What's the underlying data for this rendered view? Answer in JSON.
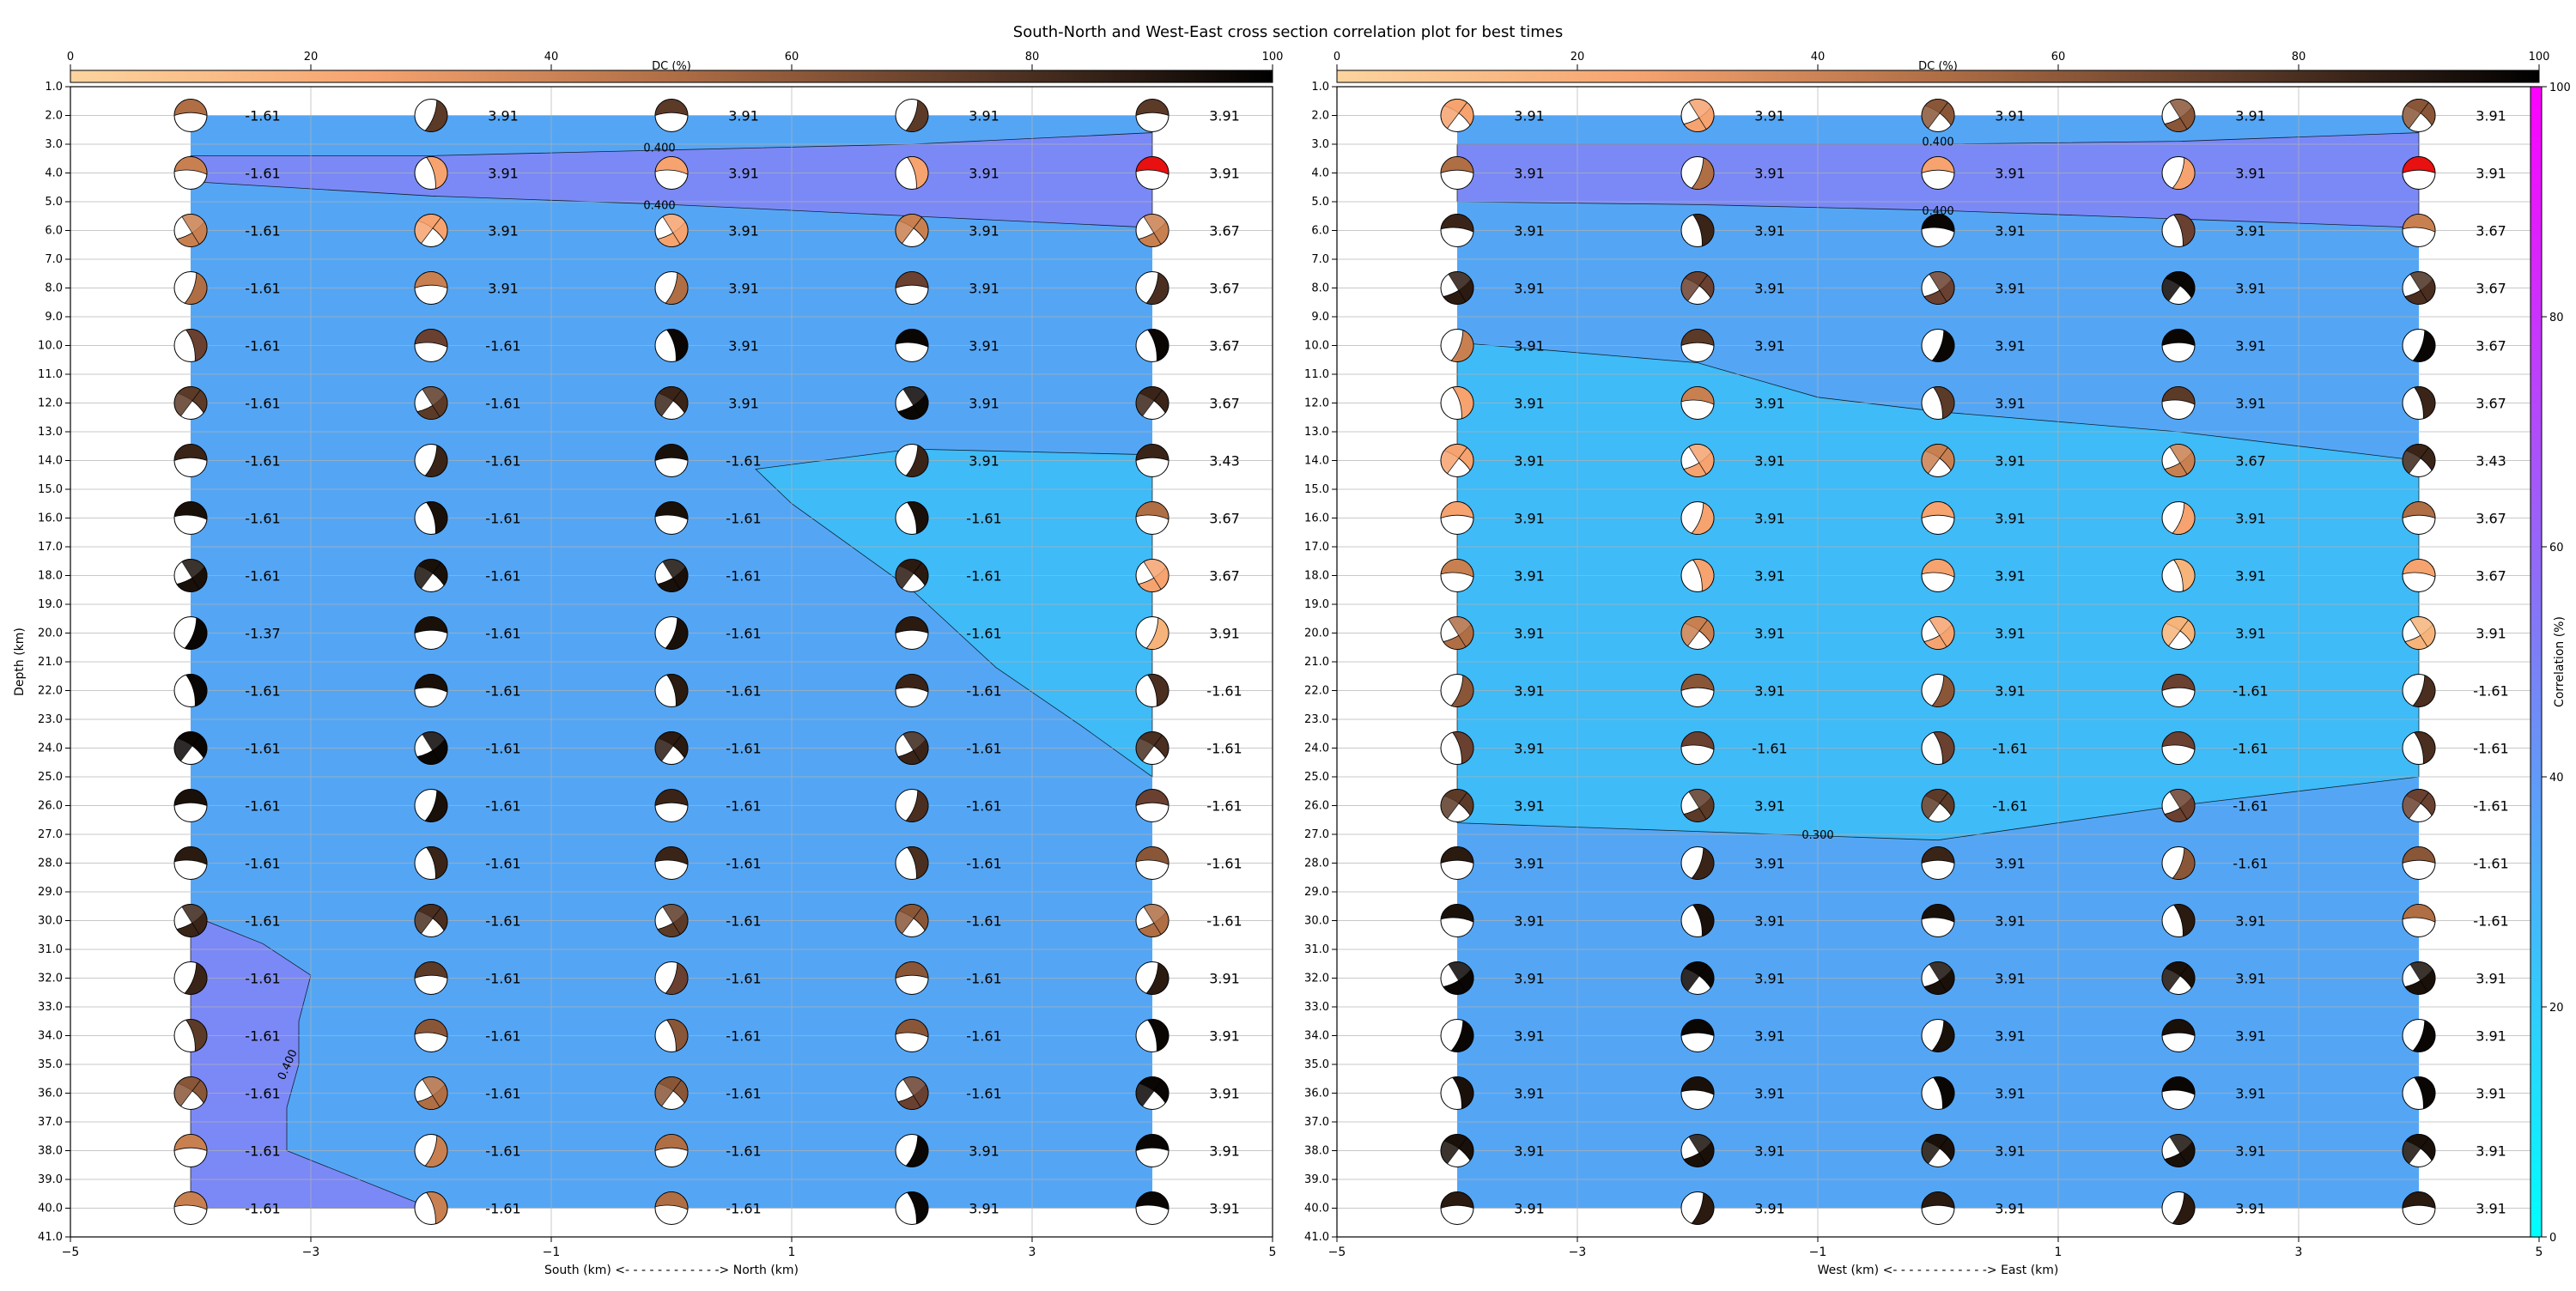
{
  "title": "South-North and West-East cross section correlation plot for best times",
  "dc_colorbar": {
    "label": "DC (%)",
    "ticks": [
      "0",
      "20",
      "40",
      "60",
      "80",
      "100"
    ]
  },
  "corr_colorbar": {
    "label": "Correlation (%)",
    "ticks": [
      "0",
      "20",
      "40",
      "60",
      "80",
      "100"
    ]
  },
  "chart_data": [
    {
      "type": "scatter",
      "name": "south-north",
      "xlabel": "South (km) <- - - - - - - - - - - -> North (km)",
      "ylabel": "Depth (km)",
      "xlim": [
        -5,
        5
      ],
      "ylim": [
        1,
        41
      ],
      "xticks": [
        -5,
        -3,
        -1,
        1,
        3,
        5
      ],
      "yticks": [
        1,
        2,
        3,
        4,
        5,
        6,
        7,
        8,
        9,
        10,
        11,
        12,
        13,
        14,
        15,
        16,
        17,
        18,
        19,
        20,
        21,
        22,
        23,
        24,
        25,
        26,
        27,
        28,
        29,
        30,
        31,
        32,
        33,
        34,
        35,
        36,
        37,
        38,
        39,
        40,
        41
      ],
      "grid": true,
      "x": [
        -4,
        -2,
        0,
        2,
        4
      ],
      "depths": [
        2,
        4,
        6,
        8,
        10,
        12,
        14,
        16,
        18,
        20,
        22,
        24,
        26,
        28,
        30,
        32,
        34,
        36,
        38,
        40
      ],
      "values": [
        [
          "-1.61",
          "3.91",
          "3.91",
          "3.91",
          "3.91"
        ],
        [
          "-1.61",
          "3.91",
          "3.91",
          "3.91",
          "3.91"
        ],
        [
          "-1.61",
          "3.91",
          "3.91",
          "3.91",
          "3.67"
        ],
        [
          "-1.61",
          "3.91",
          "3.91",
          "3.91",
          "3.67"
        ],
        [
          "-1.61",
          "-1.61",
          "3.91",
          "3.91",
          "3.67"
        ],
        [
          "-1.61",
          "-1.61",
          "3.91",
          "3.91",
          "3.67"
        ],
        [
          "-1.61",
          "-1.61",
          "-1.61",
          "3.91",
          "3.43"
        ],
        [
          "-1.61",
          "-1.61",
          "-1.61",
          "-1.61",
          "3.67"
        ],
        [
          "-1.61",
          "-1.61",
          "-1.61",
          "-1.61",
          "3.67"
        ],
        [
          "-1.37",
          "-1.61",
          "-1.61",
          "-1.61",
          "3.91"
        ],
        [
          "-1.61",
          "-1.61",
          "-1.61",
          "-1.61",
          "-1.61"
        ],
        [
          "-1.61",
          "-1.61",
          "-1.61",
          "-1.61",
          "-1.61"
        ],
        [
          "-1.61",
          "-1.61",
          "-1.61",
          "-1.61",
          "-1.61"
        ],
        [
          "-1.61",
          "-1.61",
          "-1.61",
          "-1.61",
          "-1.61"
        ],
        [
          "-1.61",
          "-1.61",
          "-1.61",
          "-1.61",
          "-1.61"
        ],
        [
          "-1.61",
          "-1.61",
          "-1.61",
          "-1.61",
          "3.91"
        ],
        [
          "-1.61",
          "-1.61",
          "-1.61",
          "-1.61",
          "3.91"
        ],
        [
          "-1.61",
          "-1.61",
          "-1.61",
          "-1.61",
          "3.91"
        ],
        [
          "-1.61",
          "-1.61",
          "-1.61",
          "3.91",
          "3.91"
        ],
        [
          "-1.61",
          "-1.61",
          "-1.61",
          "3.91",
          "3.91"
        ]
      ],
      "beach_color": [
        [
          "#b06e45",
          "#5c3a28",
          "#5c3a28",
          "#5c3a28",
          "#5c3a28"
        ],
        [
          "#c98050",
          "#f6a36f",
          "#f6a36f",
          "#f6a36f",
          "#e81010"
        ],
        [
          "#c98050",
          "#f6a36f",
          "#f6a36f",
          "#c98050",
          "#c98050"
        ],
        [
          "#b06e45",
          "#c98050",
          "#b06e45",
          "#6a4030",
          "#4a2e20"
        ],
        [
          "#6a4030",
          "#6a4030",
          "#0a0604",
          "#0a0604",
          "#0a0604"
        ],
        [
          "#5c3a28",
          "#5c3a28",
          "#3a2418",
          "#0a0604",
          "#3a2418"
        ],
        [
          "#3a2418",
          "#3a2418",
          "#1a100a",
          "#3a2418",
          "#3a2418"
        ],
        [
          "#1a100a",
          "#1a100a",
          "#1a100a",
          "#1a100a",
          "#b06e45"
        ],
        [
          "#1a100a",
          "#1a100a",
          "#1a100a",
          "#2a1a10",
          "#f6a36f"
        ],
        [
          "#0a0604",
          "#1a100a",
          "#1a100a",
          "#2a1a10",
          "#f6b47a"
        ],
        [
          "#0a0604",
          "#1a100a",
          "#2a1a10",
          "#3a2418",
          "#4a2e20"
        ],
        [
          "#0a0604",
          "#0a0604",
          "#2a1a10",
          "#3a2418",
          "#4a2e20"
        ],
        [
          "#1a100a",
          "#1a100a",
          "#3a2418",
          "#4a2e20",
          "#6a4030"
        ],
        [
          "#2a1a10",
          "#3a2418",
          "#3a2418",
          "#4a2e20",
          "#8a5638"
        ],
        [
          "#3a2418",
          "#4a2e20",
          "#5c3a28",
          "#8a5638",
          "#b06e45"
        ],
        [
          "#3a2418",
          "#5c3a28",
          "#6a4030",
          "#8a5638",
          "#2a1a10"
        ],
        [
          "#5c3a28",
          "#8a5638",
          "#8a5638",
          "#8a5638",
          "#0a0604"
        ],
        [
          "#8a5638",
          "#b06e45",
          "#8a5638",
          "#6a4030",
          "#0a0604"
        ],
        [
          "#c98050",
          "#c98050",
          "#b06e45",
          "#0a0604",
          "#0a0604"
        ],
        [
          "#c98050",
          "#c98050",
          "#b06e45",
          "#0a0604",
          "#0a0604"
        ]
      ],
      "regions": [
        {
          "correlation": 0.3,
          "color": "#54a6f5",
          "x_range": [
            -4,
            4
          ],
          "depth_range": [
            2,
            40
          ]
        },
        {
          "correlation": 0.4,
          "color": "#7b89f6",
          "polygon": [
            [
              -4,
              3.4
            ],
            [
              -2,
              3.4
            ],
            [
              0,
              3.2
            ],
            [
              2,
              3.0
            ],
            [
              4,
              2.6
            ],
            [
              4,
              5.9
            ],
            [
              2,
              5.5
            ],
            [
              0,
              5.1
            ],
            [
              -2,
              4.8
            ],
            [
              -4,
              4.3
            ]
          ]
        },
        {
          "correlation": 0.2,
          "color": "#3fbbf7",
          "polygon": [
            [
              0.7,
              14.3
            ],
            [
              2,
              13.6
            ],
            [
              4,
              13.8
            ],
            [
              4,
              25.0
            ],
            [
              3.4,
              23.2
            ],
            [
              2.7,
              21.2
            ],
            [
              2.0,
              18.5
            ],
            [
              1.0,
              15.5
            ]
          ]
        },
        {
          "correlation": 0.4,
          "color": "#7b89f6",
          "polygon": [
            [
              -4,
              29.8
            ],
            [
              -3.4,
              30.8
            ],
            [
              -3.0,
              31.9
            ],
            [
              -3.1,
              33.5
            ],
            [
              -3.1,
              35.0
            ],
            [
              -3.2,
              36.5
            ],
            [
              -3.2,
              38.0
            ],
            [
              -2,
              40
            ],
            [
              -4,
              40
            ]
          ]
        }
      ],
      "contour_labels": [
        {
          "text": "0.400",
          "x": -0.1,
          "depth": 3.1
        },
        {
          "text": "0.400",
          "x": -0.1,
          "depth": 5.1
        },
        {
          "text": "0.400",
          "x": -3.2,
          "depth": 35.0,
          "rotate": -66
        }
      ]
    },
    {
      "type": "scatter",
      "name": "west-east",
      "xlabel": "West (km) <- - - - - - - - - - - -> East (km)",
      "ylabel": "",
      "xlim": [
        -5,
        5
      ],
      "ylim": [
        1,
        41
      ],
      "xticks": [
        -5,
        -3,
        -1,
        1,
        3,
        5
      ],
      "yticks": [
        1,
        2,
        3,
        4,
        5,
        6,
        7,
        8,
        9,
        10,
        11,
        12,
        13,
        14,
        15,
        16,
        17,
        18,
        19,
        20,
        21,
        22,
        23,
        24,
        25,
        26,
        27,
        28,
        29,
        30,
        31,
        32,
        33,
        34,
        35,
        36,
        37,
        38,
        39,
        40,
        41
      ],
      "grid": true,
      "x": [
        -4,
        -2,
        0,
        2,
        4
      ],
      "depths": [
        2,
        4,
        6,
        8,
        10,
        12,
        14,
        16,
        18,
        20,
        22,
        24,
        26,
        28,
        30,
        32,
        34,
        36,
        38,
        40
      ],
      "values": [
        [
          "3.91",
          "3.91",
          "3.91",
          "3.91",
          "3.91"
        ],
        [
          "3.91",
          "3.91",
          "3.91",
          "3.91",
          "3.91"
        ],
        [
          "3.91",
          "3.91",
          "3.91",
          "3.91",
          "3.67"
        ],
        [
          "3.91",
          "3.91",
          "3.91",
          "3.91",
          "3.67"
        ],
        [
          "3.91",
          "3.91",
          "3.91",
          "3.91",
          "3.67"
        ],
        [
          "3.91",
          "3.91",
          "3.91",
          "3.91",
          "3.67"
        ],
        [
          "3.91",
          "3.91",
          "3.91",
          "3.67",
          "3.43"
        ],
        [
          "3.91",
          "3.91",
          "3.91",
          "3.91",
          "3.67"
        ],
        [
          "3.91",
          "3.91",
          "3.91",
          "3.91",
          "3.67"
        ],
        [
          "3.91",
          "3.91",
          "3.91",
          "3.91",
          "3.91"
        ],
        [
          "3.91",
          "3.91",
          "3.91",
          "-1.61",
          "-1.61"
        ],
        [
          "3.91",
          "-1.61",
          "-1.61",
          "-1.61",
          "-1.61"
        ],
        [
          "3.91",
          "3.91",
          "-1.61",
          "-1.61",
          "-1.61"
        ],
        [
          "3.91",
          "3.91",
          "3.91",
          "-1.61",
          "-1.61"
        ],
        [
          "3.91",
          "3.91",
          "3.91",
          "3.91",
          "-1.61"
        ],
        [
          "3.91",
          "3.91",
          "3.91",
          "3.91",
          "3.91"
        ],
        [
          "3.91",
          "3.91",
          "3.91",
          "3.91",
          "3.91"
        ],
        [
          "3.91",
          "3.91",
          "3.91",
          "3.91",
          "3.91"
        ],
        [
          "3.91",
          "3.91",
          "3.91",
          "3.91",
          "3.91"
        ],
        [
          "3.91",
          "3.91",
          "3.91",
          "3.91",
          "3.91"
        ]
      ],
      "beach_color": [
        [
          "#f6a36f",
          "#f6a36f",
          "#8a5638",
          "#8a5638",
          "#8a5638"
        ],
        [
          "#b06e45",
          "#b06e45",
          "#f6a36f",
          "#f6a36f",
          "#e81010"
        ],
        [
          "#3a2418",
          "#3a2418",
          "#0a0604",
          "#6a4030",
          "#c98050"
        ],
        [
          "#2a1a10",
          "#6a4030",
          "#6a4030",
          "#0a0604",
          "#4a2e20"
        ],
        [
          "#c98050",
          "#5c3a28",
          "#0a0604",
          "#0a0604",
          "#0a0604"
        ],
        [
          "#f6a36f",
          "#c98050",
          "#5c3a28",
          "#5c3a28",
          "#3a2418"
        ],
        [
          "#f6a36f",
          "#f6a36f",
          "#c98050",
          "#c98050",
          "#3a2418"
        ],
        [
          "#f6a36f",
          "#f6a36f",
          "#f6a36f",
          "#f6a36f",
          "#b06e45"
        ],
        [
          "#c98050",
          "#f6a36f",
          "#f6a36f",
          "#f6b47a",
          "#f6a36f"
        ],
        [
          "#b06e45",
          "#c98050",
          "#f6a36f",
          "#f6b47a",
          "#f6b47a"
        ],
        [
          "#8a5638",
          "#8a5638",
          "#8a5638",
          "#6a4030",
          "#4a2e20"
        ],
        [
          "#6a4030",
          "#6a4030",
          "#6a4030",
          "#6a4030",
          "#4a2e20"
        ],
        [
          "#5c3a28",
          "#5c3a28",
          "#5c3a28",
          "#6a4030",
          "#6a4030"
        ],
        [
          "#2a1a10",
          "#3a2418",
          "#3a2418",
          "#8a5638",
          "#8a5638"
        ],
        [
          "#1a100a",
          "#1a100a",
          "#1a100a",
          "#2a1a10",
          "#b06e45"
        ],
        [
          "#0a0604",
          "#0a0604",
          "#1a100a",
          "#1a100a",
          "#1a100a"
        ],
        [
          "#0a0604",
          "#0a0604",
          "#1a100a",
          "#1a100a",
          "#0a0604"
        ],
        [
          "#1a100a",
          "#1a100a",
          "#0a0604",
          "#0a0604",
          "#0a0604"
        ],
        [
          "#1a100a",
          "#1a100a",
          "#1a100a",
          "#1a100a",
          "#1a100a"
        ],
        [
          "#2a1a10",
          "#2a1a10",
          "#2a1a10",
          "#2a1a10",
          "#2a1a10"
        ]
      ],
      "regions": [
        {
          "correlation": 0.3,
          "color": "#54a6f5",
          "x_range": [
            -4,
            4
          ],
          "depth_range": [
            2,
            40
          ]
        },
        {
          "correlation": 0.4,
          "color": "#7b89f6",
          "polygon": [
            [
              -4,
              3.0
            ],
            [
              -2,
              3.0
            ],
            [
              0,
              3.0
            ],
            [
              2,
              2.9
            ],
            [
              4,
              2.6
            ],
            [
              4,
              5.9
            ],
            [
              2,
              5.6
            ],
            [
              0,
              5.3
            ],
            [
              -2,
              5.1
            ],
            [
              -4,
              5.0
            ]
          ]
        },
        {
          "correlation": 0.2,
          "color": "#3fbbf7",
          "polygon": [
            [
              -4,
              9.9
            ],
            [
              -2,
              10.6
            ],
            [
              -1,
              11.8
            ],
            [
              0,
              12.3
            ],
            [
              2,
              13.0
            ],
            [
              4,
              14.0
            ],
            [
              4,
              25.0
            ],
            [
              2,
              26.0
            ],
            [
              0,
              27.2
            ],
            [
              -2,
              26.9
            ],
            [
              -4,
              26.6
            ]
          ]
        }
      ],
      "contour_labels": [
        {
          "text": "0.400",
          "x": 0,
          "depth": 2.9
        },
        {
          "text": "0.400",
          "x": 0,
          "depth": 5.3
        },
        {
          "text": "0.300",
          "x": -1,
          "depth": 27.0
        }
      ]
    }
  ]
}
